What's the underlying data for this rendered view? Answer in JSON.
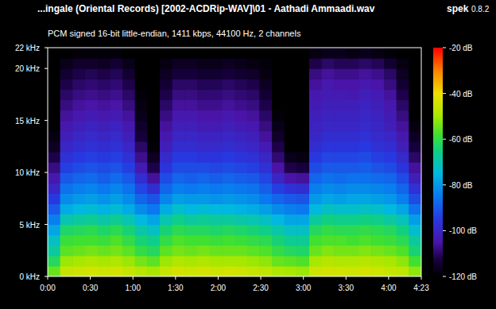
{
  "chart_data": {
    "type": "heatmap",
    "title": "...ingale (Oriental Records) [2002-ACDRip-WAV]\\01 - Aathadi Ammaadi.wav",
    "app_name": "spek",
    "app_version": "0.8.2",
    "subtitle": "PCM signed 16-bit little-endian, 1411 kbps, 44100 Hz, 2 channels",
    "xlim": [
      0,
      263
    ],
    "xticks": [
      {
        "value": 0,
        "label": "0:00"
      },
      {
        "value": 30,
        "label": "0:30"
      },
      {
        "value": 60,
        "label": "1:00"
      },
      {
        "value": 90,
        "label": "1:30"
      },
      {
        "value": 120,
        "label": "2:00"
      },
      {
        "value": 150,
        "label": "2:30"
      },
      {
        "value": 180,
        "label": "3:00"
      },
      {
        "value": 210,
        "label": "3:30"
      },
      {
        "value": 240,
        "label": "4:00"
      },
      {
        "value": 263,
        "label": "4:23"
      }
    ],
    "ylim": [
      0,
      22
    ],
    "yticks": [
      {
        "value": 0,
        "label": "0 kHz"
      },
      {
        "value": 5,
        "label": "5 kHz"
      },
      {
        "value": 10,
        "label": "10 kHz"
      },
      {
        "value": 15,
        "label": "15 kHz"
      },
      {
        "value": 20,
        "label": "20 kHz"
      },
      {
        "value": 22,
        "label": "22 kHz"
      }
    ],
    "cells": [
      [
        -55,
        -62,
        -68,
        -72,
        -78,
        -84,
        -90,
        -95,
        -100,
        -104,
        -108,
        -112,
        -116,
        -118,
        -120,
        -120,
        -120,
        -120,
        -120,
        -120,
        -120,
        -120
      ],
      [
        -46,
        -51,
        -56,
        -59,
        -63,
        -70,
        -77,
        -82,
        -86,
        -90,
        -94,
        -97,
        -100,
        -102,
        -104,
        -106,
        -108,
        -110,
        -112,
        -114,
        -117,
        -120
      ],
      [
        -45,
        -50,
        -55,
        -58,
        -62,
        -68,
        -75,
        -80,
        -84,
        -88,
        -92,
        -95,
        -98,
        -100,
        -102,
        -104,
        -106,
        -108,
        -110,
        -112,
        -115,
        -119
      ],
      [
        -44,
        -49,
        -54,
        -58,
        -61,
        -67,
        -74,
        -79,
        -83,
        -87,
        -91,
        -94,
        -97,
        -99,
        -101,
        -103,
        -105,
        -107,
        -109,
        -111,
        -115,
        -119
      ],
      [
        -45,
        -50,
        -55,
        -59,
        -63,
        -69,
        -76,
        -81,
        -85,
        -89,
        -92,
        -95,
        -98,
        -100,
        -102,
        -104,
        -106,
        -108,
        -110,
        -112,
        -116,
        -119
      ],
      [
        -44,
        -49,
        -54,
        -57,
        -61,
        -67,
        -74,
        -79,
        -83,
        -87,
        -91,
        -94,
        -97,
        -99,
        -101,
        -103,
        -105,
        -107,
        -109,
        -111,
        -114,
        -119
      ],
      [
        -46,
        -51,
        -56,
        -60,
        -64,
        -70,
        -77,
        -82,
        -86,
        -90,
        -94,
        -97,
        -100,
        -102,
        -104,
        -106,
        -108,
        -110,
        -112,
        -114,
        -117,
        -120
      ],
      [
        -48,
        -54,
        -60,
        -64,
        -69,
        -75,
        -82,
        -88,
        -93,
        -98,
        -103,
        -107,
        -110,
        -113,
        -115,
        -117,
        -118,
        -119,
        -120,
        -120,
        -120,
        -120
      ],
      [
        -50,
        -56,
        -62,
        -66,
        -72,
        -78,
        -85,
        -91,
        -98,
        -106,
        -112,
        -116,
        -119,
        -120,
        -120,
        -120,
        -120,
        -120,
        -120,
        -120,
        -120,
        -120
      ],
      [
        -46,
        -51,
        -56,
        -60,
        -64,
        -70,
        -77,
        -83,
        -88,
        -92,
        -96,
        -99,
        -102,
        -104,
        -106,
        -108,
        -110,
        -112,
        -114,
        -116,
        -118,
        -120
      ],
      [
        -44,
        -49,
        -54,
        -57,
        -61,
        -66,
        -73,
        -79,
        -84,
        -88,
        -92,
        -95,
        -98,
        -100,
        -102,
        -104,
        -106,
        -108,
        -110,
        -113,
        -116,
        -120
      ],
      [
        -45,
        -50,
        -55,
        -58,
        -62,
        -68,
        -75,
        -80,
        -85,
        -89,
        -92,
        -95,
        -98,
        -100,
        -102,
        -104,
        -106,
        -108,
        -110,
        -113,
        -116,
        -120
      ],
      [
        -44,
        -49,
        -54,
        -58,
        -62,
        -67,
        -74,
        -80,
        -84,
        -88,
        -92,
        -96,
        -99,
        -101,
        -103,
        -105,
        -107,
        -109,
        -111,
        -114,
        -117,
        -120
      ],
      [
        -45,
        -50,
        -55,
        -59,
        -63,
        -68,
        -75,
        -81,
        -85,
        -89,
        -93,
        -96,
        -99,
        -101,
        -103,
        -105,
        -107,
        -109,
        -111,
        -114,
        -117,
        -120
      ],
      [
        -44,
        -50,
        -55,
        -58,
        -62,
        -68,
        -75,
        -80,
        -84,
        -88,
        -92,
        -95,
        -98,
        -100,
        -102,
        -104,
        -106,
        -108,
        -110,
        -113,
        -116,
        -120
      ],
      [
        -45,
        -50,
        -55,
        -59,
        -63,
        -69,
        -76,
        -81,
        -85,
        -89,
        -93,
        -96,
        -99,
        -101,
        -103,
        -105,
        -107,
        -109,
        -111,
        -114,
        -117,
        -120
      ],
      [
        -46,
        -51,
        -56,
        -60,
        -64,
        -70,
        -77,
        -82,
        -86,
        -90,
        -94,
        -97,
        -100,
        -102,
        -104,
        -106,
        -108,
        -110,
        -112,
        -115,
        -118,
        -120
      ],
      [
        -47,
        -52,
        -57,
        -61,
        -66,
        -72,
        -79,
        -85,
        -89,
        -93,
        -97,
        -100,
        -103,
        -106,
        -108,
        -110,
        -112,
        -114,
        -116,
        -118,
        -119,
        -120
      ],
      [
        -49,
        -55,
        -60,
        -64,
        -69,
        -75,
        -82,
        -88,
        -94,
        -100,
        -105,
        -109,
        -112,
        -115,
        -117,
        -119,
        -120,
        -120,
        -120,
        -120,
        -120,
        -120
      ],
      [
        -50,
        -56,
        -62,
        -67,
        -72,
        -78,
        -84,
        -90,
        -97,
        -105,
        -112,
        -117,
        -120,
        -120,
        -120,
        -120,
        -120,
        -120,
        -120,
        -120,
        -120,
        -120
      ],
      [
        -51,
        -57,
        -63,
        -67,
        -72,
        -78,
        -85,
        -91,
        -98,
        -106,
        -113,
        -118,
        -120,
        -120,
        -120,
        -120,
        -120,
        -120,
        -120,
        -120,
        -120,
        -120
      ],
      [
        -45,
        -50,
        -55,
        -58,
        -62,
        -68,
        -75,
        -80,
        -84,
        -88,
        -92,
        -95,
        -98,
        -100,
        -101,
        -102,
        -103,
        -104,
        -106,
        -108,
        -112,
        -118
      ],
      [
        -44,
        -48,
        -53,
        -57,
        -60,
        -65,
        -72,
        -78,
        -82,
        -86,
        -90,
        -93,
        -96,
        -98,
        -100,
        -101,
        -102,
        -103,
        -104,
        -106,
        -110,
        -117
      ],
      [
        -44,
        -49,
        -54,
        -57,
        -61,
        -66,
        -73,
        -79,
        -83,
        -87,
        -90,
        -93,
        -96,
        -98,
        -100,
        -101,
        -102,
        -103,
        -105,
        -107,
        -111,
        -117
      ],
      [
        -45,
        -49,
        -54,
        -58,
        -61,
        -66,
        -73,
        -78,
        -82,
        -86,
        -90,
        -93,
        -96,
        -98,
        -100,
        -101,
        -102,
        -104,
        -105,
        -107,
        -111,
        -118
      ],
      [
        -44,
        -48,
        -53,
        -57,
        -60,
        -65,
        -72,
        -78,
        -82,
        -86,
        -89,
        -92,
        -95,
        -97,
        -99,
        -100,
        -101,
        -102,
        -104,
        -106,
        -110,
        -117
      ],
      [
        -45,
        -49,
        -54,
        -58,
        -61,
        -66,
        -73,
        -79,
        -83,
        -87,
        -91,
        -94,
        -97,
        -99,
        -100,
        -101,
        -102,
        -103,
        -105,
        -107,
        -111,
        -118
      ],
      [
        -46,
        -50,
        -55,
        -59,
        -62,
        -68,
        -75,
        -80,
        -84,
        -88,
        -92,
        -95,
        -98,
        -100,
        -102,
        -103,
        -104,
        -106,
        -108,
        -110,
        -114,
        -119
      ],
      [
        -47,
        -52,
        -57,
        -61,
        -65,
        -71,
        -78,
        -84,
        -88,
        -92,
        -96,
        -99,
        -102,
        -104,
        -106,
        -108,
        -110,
        -112,
        -114,
        -116,
        -118,
        -120
      ],
      [
        -52,
        -58,
        -64,
        -68,
        -73,
        -79,
        -86,
        -92,
        -97,
        -102,
        -106,
        -110,
        -113,
        -116,
        -118,
        -120,
        -120,
        -120,
        -120,
        -120,
        -120,
        -120
      ]
    ],
    "colorbar": {
      "range": [
        -120,
        -20
      ],
      "ticks": [
        {
          "value": -20,
          "label": "-20 dB"
        },
        {
          "value": -40,
          "label": "-40 dB"
        },
        {
          "value": -60,
          "label": "-60 dB"
        },
        {
          "value": -80,
          "label": "-80 dB"
        },
        {
          "value": -100,
          "label": "-100 dB"
        },
        {
          "value": -120,
          "label": "-120 dB"
        }
      ]
    }
  }
}
